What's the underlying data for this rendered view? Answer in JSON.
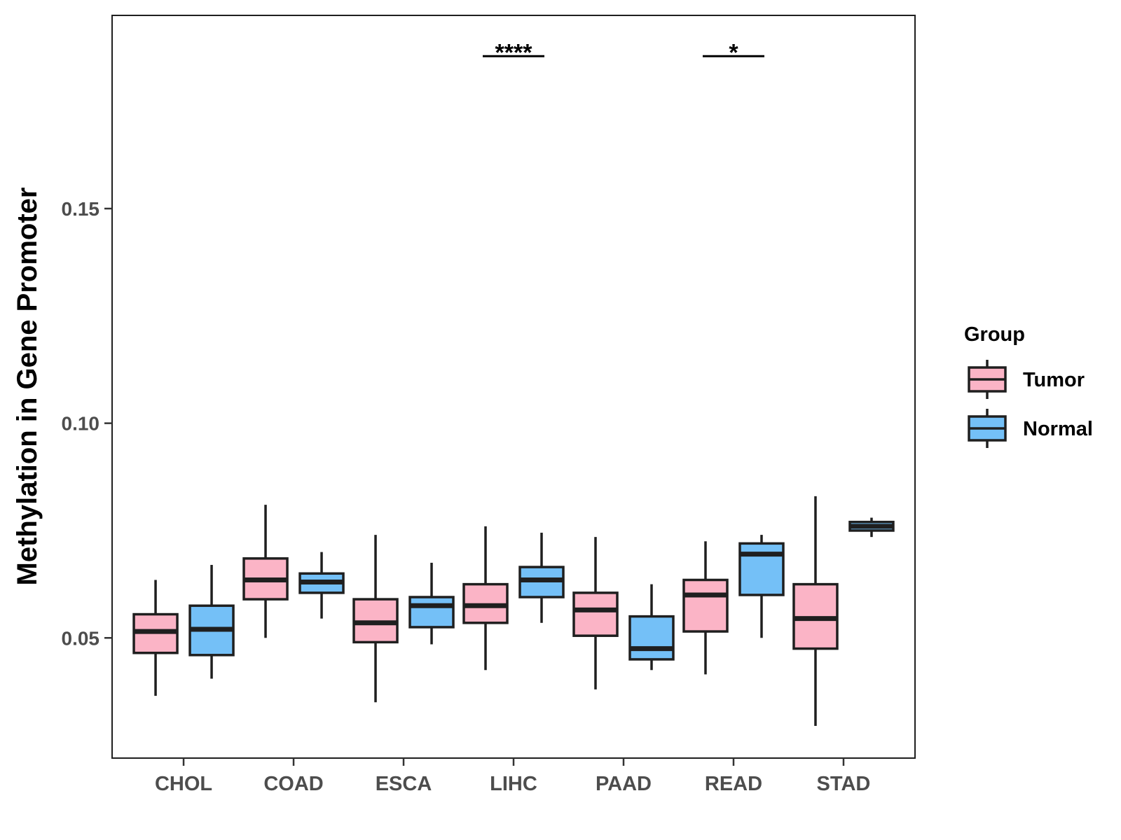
{
  "chart_data": {
    "type": "boxplot",
    "title": "",
    "xlabel": "",
    "ylabel": "Methylation in Gene Promoter",
    "ylim": [
      0.022,
      0.195
    ],
    "yticks": [
      0.05,
      0.1,
      0.15
    ],
    "ytick_labels": [
      "0.05",
      "0.10",
      "0.15"
    ],
    "categories": [
      "CHOL",
      "COAD",
      "ESCA",
      "LIHC",
      "PAAD",
      "READ",
      "STAD"
    ],
    "legend": {
      "title": "Group",
      "position": "right",
      "items": [
        {
          "label": "Tumor",
          "color": "#fbb4c6"
        },
        {
          "label": "Normal",
          "color": "#74c0f7"
        }
      ]
    },
    "series": [
      {
        "name": "Tumor",
        "color": "#fbb4c6",
        "boxes": [
          {
            "category": "CHOL",
            "min": 0.0365,
            "q1": 0.0465,
            "median": 0.0515,
            "q3": 0.0555,
            "max": 0.0635
          },
          {
            "category": "COAD",
            "min": 0.05,
            "q1": 0.059,
            "median": 0.0635,
            "q3": 0.0685,
            "max": 0.081
          },
          {
            "category": "ESCA",
            "min": 0.035,
            "q1": 0.049,
            "median": 0.0535,
            "q3": 0.059,
            "max": 0.074
          },
          {
            "category": "LIHC",
            "min": 0.0425,
            "q1": 0.0535,
            "median": 0.0575,
            "q3": 0.0625,
            "max": 0.076
          },
          {
            "category": "PAAD",
            "min": 0.038,
            "q1": 0.0505,
            "median": 0.0565,
            "q3": 0.0605,
            "max": 0.0735
          },
          {
            "category": "READ",
            "min": 0.0415,
            "q1": 0.0515,
            "median": 0.06,
            "q3": 0.0635,
            "max": 0.0725
          },
          {
            "category": "STAD",
            "min": 0.0295,
            "q1": 0.0475,
            "median": 0.0545,
            "q3": 0.0625,
            "max": 0.083
          }
        ]
      },
      {
        "name": "Normal",
        "color": "#74c0f7",
        "boxes": [
          {
            "category": "CHOL",
            "min": 0.0405,
            "q1": 0.046,
            "median": 0.052,
            "q3": 0.0575,
            "max": 0.067
          },
          {
            "category": "COAD",
            "min": 0.0545,
            "q1": 0.0605,
            "median": 0.063,
            "q3": 0.065,
            "max": 0.07
          },
          {
            "category": "ESCA",
            "min": 0.0485,
            "q1": 0.0525,
            "median": 0.0575,
            "q3": 0.0595,
            "max": 0.0675
          },
          {
            "category": "LIHC",
            "min": 0.0535,
            "q1": 0.0595,
            "median": 0.0635,
            "q3": 0.0665,
            "max": 0.0745
          },
          {
            "category": "PAAD",
            "min": 0.0425,
            "q1": 0.045,
            "median": 0.0475,
            "q3": 0.055,
            "max": 0.0625
          },
          {
            "category": "READ",
            "min": 0.05,
            "q1": 0.06,
            "median": 0.0695,
            "q3": 0.072,
            "max": 0.074
          },
          {
            "category": "STAD",
            "min": 0.0735,
            "q1": 0.075,
            "median": 0.076,
            "q3": 0.077,
            "max": 0.078
          }
        ]
      }
    ],
    "annotations": [
      {
        "category": "LIHC",
        "label": "****",
        "y": 0.1855
      },
      {
        "category": "READ",
        "label": "*",
        "y": 0.1855
      }
    ]
  }
}
